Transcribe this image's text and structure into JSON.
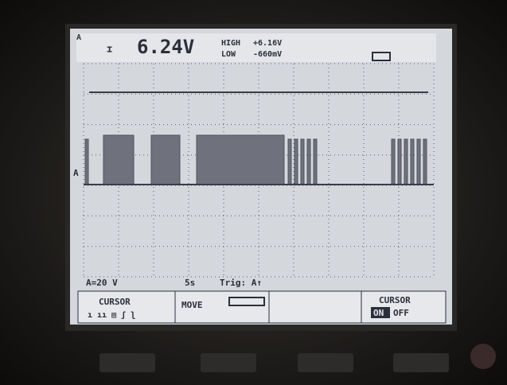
{
  "header": {
    "channel": "A",
    "reading": "6.24V",
    "high_label": "HIGH",
    "high_value": "+6.16V",
    "low_label": "LOW",
    "low_value": "-660mV"
  },
  "status": {
    "scale": "A=20 V",
    "timebase": "5s",
    "trigger": "Trig: A↑"
  },
  "softkeys": {
    "cursor": "CURSOR",
    "move": "MOVE",
    "cursor_toggle": "CURSOR",
    "on": "ON",
    "off": "OFF"
  }
}
